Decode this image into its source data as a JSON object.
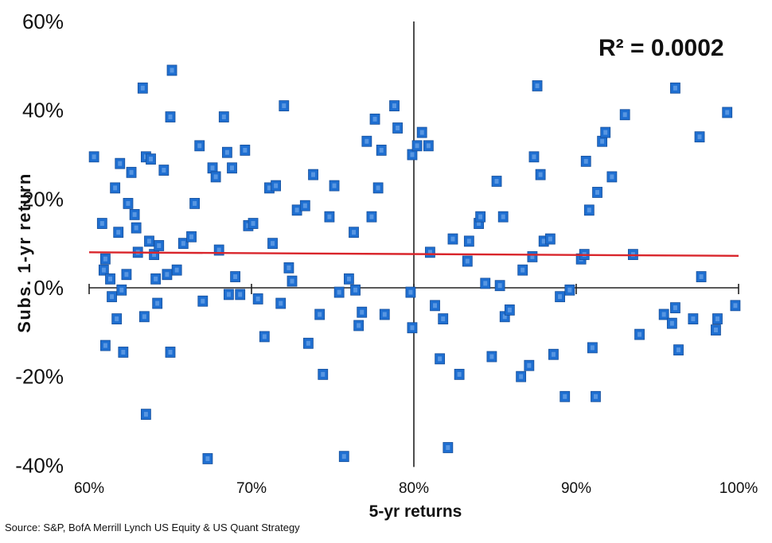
{
  "chart_data": {
    "type": "scatter",
    "title": "",
    "annotation": "R² = 0.0002",
    "xlabel": "5-yr returns",
    "ylabel": "Subs. 1-yr return",
    "xlim": [
      60,
      100
    ],
    "ylim": [
      -40,
      60
    ],
    "x_ticks": [
      "60%",
      "70%",
      "80%",
      "90%",
      "100%"
    ],
    "y_ticks": [
      "60%",
      "40%",
      "20%",
      "0%",
      "-20%",
      "-40%"
    ],
    "x_tick_values": [
      60,
      70,
      80,
      90,
      100
    ],
    "y_tick_values": [
      60,
      40,
      20,
      0,
      -20,
      -40
    ],
    "vertical_reference_x": 80,
    "trendline": {
      "x": [
        60,
        100
      ],
      "y": [
        8.0,
        7.2
      ],
      "color": "#d9252b"
    },
    "marker_color": "#1f6fd1",
    "points": [
      [
        60.3,
        29.5
      ],
      [
        60.8,
        14.5
      ],
      [
        60.9,
        4.0
      ],
      [
        61.0,
        6.5
      ],
      [
        61.0,
        -13.0
      ],
      [
        61.3,
        2.0
      ],
      [
        61.4,
        -2.0
      ],
      [
        61.6,
        22.5
      ],
      [
        61.7,
        -7.0
      ],
      [
        61.8,
        12.5
      ],
      [
        61.9,
        28.0
      ],
      [
        62.0,
        -0.5
      ],
      [
        62.1,
        -14.5
      ],
      [
        62.3,
        3.0
      ],
      [
        62.4,
        19.0
      ],
      [
        62.6,
        26.0
      ],
      [
        62.8,
        16.5
      ],
      [
        62.9,
        13.5
      ],
      [
        63.0,
        8.0
      ],
      [
        63.3,
        45.0
      ],
      [
        63.4,
        -6.5
      ],
      [
        63.5,
        -28.5
      ],
      [
        63.5,
        29.5
      ],
      [
        63.7,
        10.5
      ],
      [
        63.8,
        29.0
      ],
      [
        64.0,
        7.5
      ],
      [
        64.1,
        2.0
      ],
      [
        64.2,
        -3.5
      ],
      [
        64.3,
        9.5
      ],
      [
        64.6,
        26.5
      ],
      [
        64.8,
        3.0
      ],
      [
        65.0,
        38.5
      ],
      [
        65.0,
        -14.5
      ],
      [
        65.1,
        49.0
      ],
      [
        65.4,
        4.0
      ],
      [
        65.8,
        10.0
      ],
      [
        66.3,
        11.5
      ],
      [
        66.5,
        19.0
      ],
      [
        66.8,
        32.0
      ],
      [
        67.0,
        -3.0
      ],
      [
        67.3,
        -38.5
      ],
      [
        67.6,
        27.0
      ],
      [
        67.8,
        25.0
      ],
      [
        68.0,
        8.5
      ],
      [
        68.3,
        38.5
      ],
      [
        68.5,
        30.5
      ],
      [
        68.6,
        -1.5
      ],
      [
        68.8,
        27.0
      ],
      [
        69.0,
        2.5
      ],
      [
        69.3,
        -1.5
      ],
      [
        69.6,
        31.0
      ],
      [
        69.8,
        14.0
      ],
      [
        70.1,
        14.5
      ],
      [
        70.4,
        -2.5
      ],
      [
        70.8,
        -11.0
      ],
      [
        71.1,
        22.5
      ],
      [
        71.3,
        10.0
      ],
      [
        71.5,
        23.0
      ],
      [
        71.8,
        -3.5
      ],
      [
        72.0,
        41.0
      ],
      [
        72.3,
        4.5
      ],
      [
        72.5,
        1.5
      ],
      [
        72.8,
        17.5
      ],
      [
        73.3,
        18.5
      ],
      [
        73.5,
        -12.5
      ],
      [
        73.8,
        25.5
      ],
      [
        74.2,
        -6.0
      ],
      [
        74.4,
        -19.5
      ],
      [
        74.8,
        16.0
      ],
      [
        75.1,
        23.0
      ],
      [
        75.4,
        -1.0
      ],
      [
        75.7,
        -38.0
      ],
      [
        76.0,
        2.0
      ],
      [
        76.3,
        12.5
      ],
      [
        76.4,
        -0.5
      ],
      [
        76.6,
        -8.5
      ],
      [
        76.8,
        -5.5
      ],
      [
        77.1,
        33.0
      ],
      [
        77.4,
        16.0
      ],
      [
        77.6,
        38.0
      ],
      [
        77.8,
        22.5
      ],
      [
        78.0,
        31.0
      ],
      [
        78.2,
        -6.0
      ],
      [
        78.8,
        41.0
      ],
      [
        79.0,
        36.0
      ],
      [
        79.8,
        -1.0
      ],
      [
        79.9,
        -9.0
      ],
      [
        79.9,
        30.0
      ],
      [
        80.2,
        32.0
      ],
      [
        80.5,
        35.0
      ],
      [
        80.9,
        32.0
      ],
      [
        81.0,
        8.0
      ],
      [
        81.3,
        -4.0
      ],
      [
        81.6,
        -16.0
      ],
      [
        81.8,
        -7.0
      ],
      [
        82.1,
        -36.0
      ],
      [
        82.4,
        11.0
      ],
      [
        82.8,
        -19.5
      ],
      [
        83.3,
        6.0
      ],
      [
        83.4,
        10.5
      ],
      [
        84.0,
        14.5
      ],
      [
        84.1,
        16.0
      ],
      [
        84.4,
        1.0
      ],
      [
        84.8,
        -15.5
      ],
      [
        85.1,
        24.0
      ],
      [
        85.3,
        0.5
      ],
      [
        85.5,
        16.0
      ],
      [
        85.6,
        -6.5
      ],
      [
        85.9,
        -5.0
      ],
      [
        86.6,
        -20.0
      ],
      [
        86.7,
        4.0
      ],
      [
        87.1,
        -17.5
      ],
      [
        87.3,
        7.0
      ],
      [
        87.4,
        29.5
      ],
      [
        87.6,
        45.5
      ],
      [
        87.8,
        25.5
      ],
      [
        88.0,
        10.5
      ],
      [
        88.4,
        11.0
      ],
      [
        88.6,
        -15.0
      ],
      [
        89.0,
        -2.0
      ],
      [
        89.3,
        -24.5
      ],
      [
        89.6,
        -0.5
      ],
      [
        90.3,
        6.5
      ],
      [
        90.5,
        7.5
      ],
      [
        90.6,
        28.5
      ],
      [
        90.8,
        17.5
      ],
      [
        91.0,
        -13.5
      ],
      [
        91.2,
        -24.5
      ],
      [
        91.3,
        21.5
      ],
      [
        91.6,
        33.0
      ],
      [
        91.8,
        35.0
      ],
      [
        92.2,
        25.0
      ],
      [
        93.0,
        39.0
      ],
      [
        93.5,
        7.5
      ],
      [
        93.9,
        -10.5
      ],
      [
        95.4,
        -6.0
      ],
      [
        95.9,
        -8.0
      ],
      [
        96.1,
        45.0
      ],
      [
        96.1,
        -4.5
      ],
      [
        96.3,
        -14.0
      ],
      [
        97.2,
        -7.0
      ],
      [
        97.6,
        34.0
      ],
      [
        97.7,
        2.5
      ],
      [
        98.6,
        -9.5
      ],
      [
        98.7,
        -7.0
      ],
      [
        99.3,
        39.5
      ],
      [
        99.8,
        -4.0
      ]
    ]
  },
  "footer": {
    "source": "Source: S&P, BofA Merrill Lynch US Equity & US Quant Strategy"
  }
}
